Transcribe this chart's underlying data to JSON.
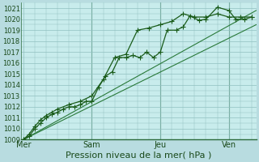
{
  "background_color": "#b8dce0",
  "plot_bg_color": "#c8ecec",
  "grid_color": "#90c0c0",
  "line_color_main": "#1a5c1a",
  "line_color_trend": "#2a7a3a",
  "ylim": [
    1009,
    1021.5
  ],
  "ytick_min": 1009,
  "ytick_max": 1021,
  "xlabel": "Pression niveau de la mer( hPa )",
  "day_labels": [
    "Mer",
    "Sam",
    "Jeu",
    "Ven"
  ],
  "day_positions": [
    0.0,
    3.0,
    6.0,
    9.0
  ],
  "xlim": [
    -0.1,
    10.2
  ],
  "series1_x": [
    0.0,
    0.25,
    0.5,
    0.75,
    1.0,
    1.25,
    1.5,
    1.75,
    2.0,
    2.25,
    2.5,
    2.75,
    3.0,
    3.3,
    3.6,
    3.9,
    4.2,
    4.5,
    4.8,
    5.1,
    5.4,
    5.7,
    6.0,
    6.3,
    6.7,
    7.0,
    7.3,
    7.7,
    8.0,
    8.5,
    9.0,
    9.3,
    9.7,
    10.0
  ],
  "series1_y": [
    1009.0,
    1009.3,
    1010.0,
    1010.5,
    1011.0,
    1011.3,
    1011.5,
    1011.8,
    1012.0,
    1012.0,
    1012.2,
    1012.5,
    1012.5,
    1013.8,
    1014.8,
    1015.2,
    1016.5,
    1016.5,
    1016.7,
    1016.5,
    1017.0,
    1016.5,
    1017.0,
    1019.0,
    1019.0,
    1019.3,
    1020.3,
    1019.9,
    1020.0,
    1021.1,
    1020.8,
    1020.0,
    1020.0,
    1020.2
  ],
  "series2_x": [
    0.0,
    0.25,
    0.5,
    0.75,
    1.0,
    1.25,
    1.5,
    2.0,
    2.5,
    3.0,
    3.5,
    4.0,
    4.5,
    5.0,
    5.5,
    6.0,
    6.5,
    7.0,
    7.5,
    8.0,
    8.5,
    9.0,
    9.5,
    10.0
  ],
  "series2_y": [
    1009.0,
    1009.5,
    1010.2,
    1010.8,
    1011.2,
    1011.5,
    1011.8,
    1012.2,
    1012.5,
    1013.0,
    1014.5,
    1016.5,
    1016.8,
    1019.0,
    1019.2,
    1019.5,
    1019.8,
    1020.5,
    1020.2,
    1020.2,
    1020.5,
    1020.2,
    1020.2,
    1020.2
  ],
  "trend1_x": [
    0.0,
    10.2
  ],
  "trend1_y": [
    1009.0,
    1019.5
  ],
  "trend2_x": [
    0.0,
    10.2
  ],
  "trend2_y": [
    1009.0,
    1020.8
  ],
  "vline_positions": [
    3.0,
    6.0,
    9.0
  ],
  "marker1": "+",
  "marker2": "+",
  "markersize": 4,
  "linewidth": 0.9,
  "trend_linewidth": 0.8,
  "xlabel_fontsize": 8,
  "tick_fontsize": 6,
  "label_fontsize": 7
}
